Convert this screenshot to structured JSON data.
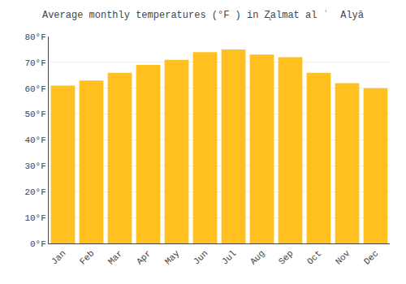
{
  "chart_data": {
    "type": "bar",
    "title": "Average monthly temperatures (°F ) in Z̨almat al ʾ  Alyā",
    "categories": [
      "Jan",
      "Feb",
      "Mar",
      "Apr",
      "May",
      "Jun",
      "Jul",
      "Aug",
      "Sep",
      "Oct",
      "Nov",
      "Dec"
    ],
    "values": [
      61,
      63,
      66,
      69,
      71,
      74,
      75,
      73,
      72,
      66,
      62,
      60
    ],
    "color": "#FFC020",
    "ylim": [
      0,
      80
    ],
    "yticks": [
      {
        "value": 0,
        "label": "0°F"
      },
      {
        "value": 10,
        "label": "10°F"
      },
      {
        "value": 20,
        "label": "20°F"
      },
      {
        "value": 30,
        "label": "30°F"
      },
      {
        "value": 40,
        "label": "40°F"
      },
      {
        "value": 50,
        "label": "50°F"
      },
      {
        "value": 60,
        "label": "60°F"
      },
      {
        "value": 70,
        "label": "70°F"
      },
      {
        "value": 80,
        "label": "80°F"
      }
    ],
    "grid": true
  }
}
